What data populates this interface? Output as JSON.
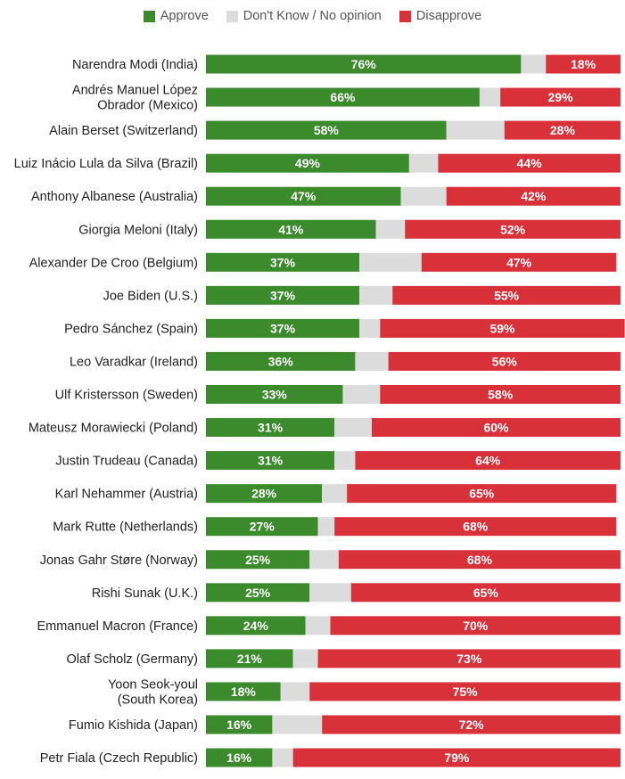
{
  "colors": {
    "approve": "#3b8a2c",
    "no_opinion": "#dcdcdc",
    "disapprove": "#d9313a"
  },
  "legend": [
    {
      "label": "Approve",
      "color_key": "approve"
    },
    {
      "label": "Don't Know / No opinion",
      "color_key": "no_opinion"
    },
    {
      "label": "Disapprove",
      "color_key": "disapprove"
    }
  ],
  "chart_data": {
    "type": "bar",
    "orientation": "horizontal",
    "stacked": true,
    "legend_position": "top-center",
    "categories": [
      "Narendra Modi (India)",
      "Andrés Manuel López Obrador (Mexico)",
      "Alain Berset (Switzerland)",
      "Luiz Inácio Lula da Silva (Brazil)",
      "Anthony Albanese (Australia)",
      "Giorgia Meloni (Italy)",
      "Alexander De Croo (Belgium)",
      "Joe Biden (U.S.)",
      "Pedro Sánchez (Spain)",
      "Leo Varadkar (Ireland)",
      "Ulf Kristersson (Sweden)",
      "Mateusz Morawiecki (Poland)",
      "Justin Trudeau (Canada)",
      "Karl Nehammer (Austria)",
      "Mark Rutte (Netherlands)",
      "Jonas Gahr Støre (Norway)",
      "Rishi Sunak (U.K.)",
      "Emmanuel Macron (France)",
      "Olaf Scholz (Germany)",
      "Yoon Seok-youl (South Korea)",
      "Fumio Kishida (Japan)",
      "Petr Fiala (Czech Republic)"
    ],
    "label_lines": [
      [
        "Narendra Modi (India)"
      ],
      [
        "Andrés Manuel López",
        "Obrador (Mexico)"
      ],
      [
        "Alain Berset (Switzerland)"
      ],
      [
        "Luiz Inácio Lula da Silva (Brazil)"
      ],
      [
        "Anthony Albanese (Australia)"
      ],
      [
        "Giorgia Meloni (Italy)"
      ],
      [
        "Alexander De Croo (Belgium)"
      ],
      [
        "Joe Biden (U.S.)"
      ],
      [
        "Pedro Sánchez (Spain)"
      ],
      [
        "Leo Varadkar (Ireland)"
      ],
      [
        "Ulf Kristersson (Sweden)"
      ],
      [
        "Mateusz Morawiecki (Poland)"
      ],
      [
        "Justin Trudeau (Canada)"
      ],
      [
        "Karl Nehammer (Austria)"
      ],
      [
        "Mark Rutte (Netherlands)"
      ],
      [
        "Jonas Gahr Støre (Norway)"
      ],
      [
        "Rishi Sunak (U.K.)"
      ],
      [
        "Emmanuel Macron (France)"
      ],
      [
        "Olaf Scholz (Germany)"
      ],
      [
        "Yoon Seok-youl",
        "(South Korea)"
      ],
      [
        "Fumio Kishida (Japan)"
      ],
      [
        "Petr Fiala (Czech Republic)"
      ]
    ],
    "series": [
      {
        "name": "Approve",
        "color_key": "approve",
        "values": [
          76,
          66,
          58,
          49,
          47,
          41,
          37,
          37,
          37,
          36,
          33,
          31,
          31,
          28,
          27,
          25,
          25,
          24,
          21,
          18,
          16,
          16
        ]
      },
      {
        "name": "Don't Know / No opinion",
        "color_key": "no_opinion",
        "values": [
          6,
          5,
          14,
          7,
          11,
          7,
          15,
          8,
          5,
          8,
          9,
          9,
          5,
          6,
          4,
          7,
          10,
          6,
          6,
          7,
          12,
          5
        ]
      },
      {
        "name": "Disapprove",
        "color_key": "disapprove",
        "values": [
          18,
          29,
          28,
          44,
          42,
          52,
          47,
          55,
          59,
          56,
          58,
          60,
          64,
          65,
          68,
          68,
          65,
          70,
          73,
          75,
          72,
          79
        ]
      }
    ],
    "labeled_series": [
      "Approve",
      "Disapprove"
    ],
    "value_suffix": "%",
    "xlim": [
      0,
      100
    ]
  }
}
